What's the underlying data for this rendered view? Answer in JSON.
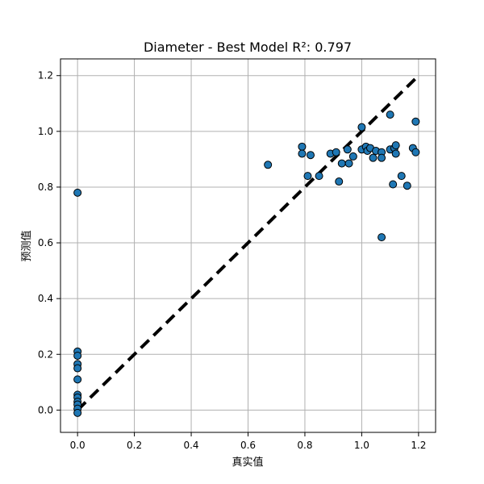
{
  "chart_data": {
    "type": "scatter",
    "title": "Diameter - Best Model R²: 0.797",
    "xlabel": "真实值",
    "ylabel": "预测值",
    "xlim": [
      -0.06,
      1.26
    ],
    "ylim": [
      -0.08,
      1.26
    ],
    "xticks": [
      "0.0",
      "0.2",
      "0.4",
      "0.6",
      "0.8",
      "1.0",
      "1.2"
    ],
    "yticks": [
      "0.0",
      "0.2",
      "0.4",
      "0.6",
      "0.8",
      "1.0",
      "1.2"
    ],
    "grid": true,
    "reference_line": {
      "style": "dashed",
      "color": "#000000",
      "from": [
        0.0,
        0.0
      ],
      "to": [
        1.19,
        1.19
      ]
    },
    "point_color": "#1f77b4",
    "points": [
      [
        0.0,
        0.78
      ],
      [
        0.0,
        0.21
      ],
      [
        0.0,
        0.195
      ],
      [
        0.0,
        0.165
      ],
      [
        0.0,
        0.15
      ],
      [
        0.0,
        0.11
      ],
      [
        0.0,
        0.055
      ],
      [
        0.0,
        0.045
      ],
      [
        0.0,
        0.03
      ],
      [
        0.0,
        0.02
      ],
      [
        0.0,
        0.005
      ],
      [
        0.0,
        -0.01
      ],
      [
        0.67,
        0.88
      ],
      [
        0.79,
        0.945
      ],
      [
        0.79,
        0.92
      ],
      [
        0.81,
        0.84
      ],
      [
        0.82,
        0.915
      ],
      [
        0.85,
        0.84
      ],
      [
        0.89,
        0.92
      ],
      [
        0.91,
        0.925
      ],
      [
        0.92,
        0.82
      ],
      [
        0.93,
        0.885
      ],
      [
        0.95,
        0.935
      ],
      [
        0.955,
        0.885
      ],
      [
        0.97,
        0.91
      ],
      [
        1.0,
        1.015
      ],
      [
        1.0,
        0.935
      ],
      [
        1.015,
        0.945
      ],
      [
        1.02,
        0.93
      ],
      [
        1.03,
        0.94
      ],
      [
        1.04,
        0.905
      ],
      [
        1.05,
        0.93
      ],
      [
        1.07,
        0.925
      ],
      [
        1.07,
        0.905
      ],
      [
        1.07,
        0.62
      ],
      [
        1.1,
        1.06
      ],
      [
        1.1,
        0.935
      ],
      [
        1.11,
        0.81
      ],
      [
        1.115,
        0.94
      ],
      [
        1.12,
        0.95
      ],
      [
        1.12,
        0.92
      ],
      [
        1.14,
        0.84
      ],
      [
        1.16,
        0.805
      ],
      [
        1.18,
        0.94
      ],
      [
        1.19,
        1.035
      ],
      [
        1.19,
        0.925
      ]
    ]
  }
}
